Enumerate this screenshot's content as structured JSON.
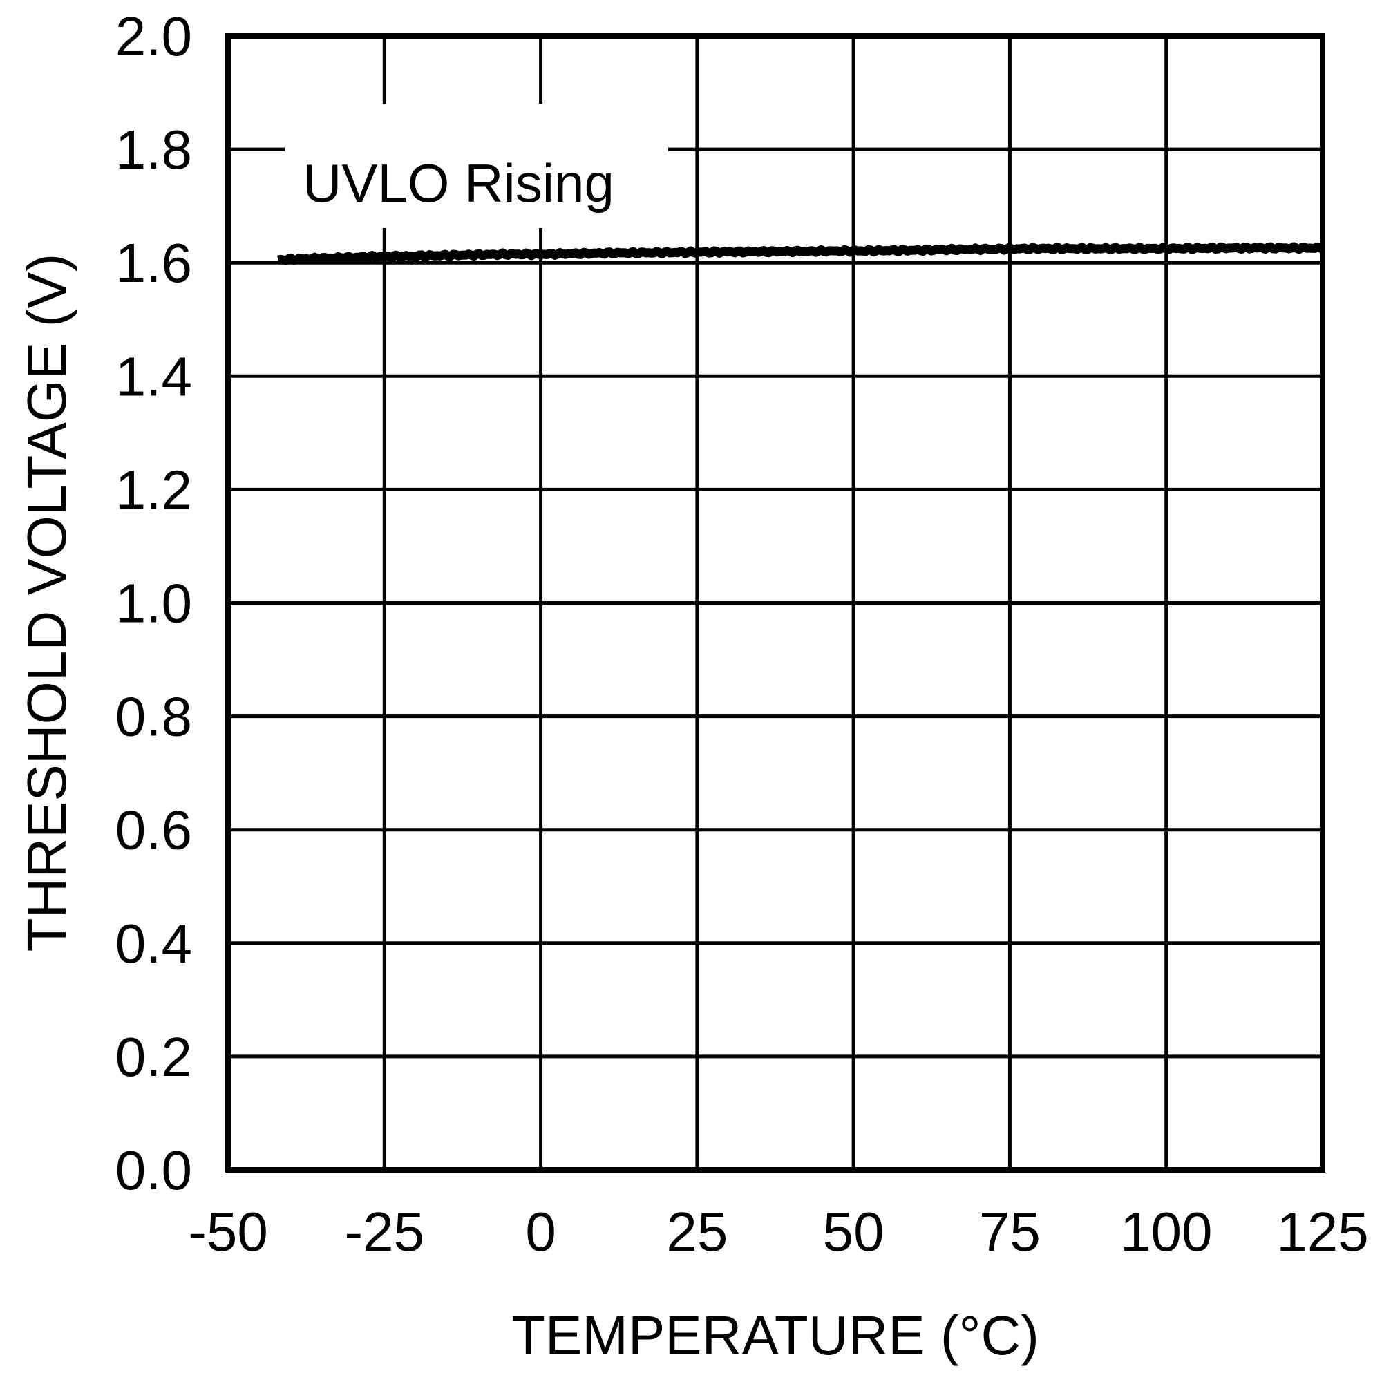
{
  "chart_data": {
    "type": "line",
    "title": "",
    "xlabel": "TEMPERATURE (°C)",
    "ylabel": "THRESHOLD VOLTAGE (V)",
    "xlim": [
      -50,
      125
    ],
    "ylim": [
      0.0,
      2.0
    ],
    "xticks": [
      "-50",
      "-25",
      "0",
      "25",
      "50",
      "75",
      "100",
      "125"
    ],
    "yticks": [
      "0.0",
      "0.2",
      "0.4",
      "0.6",
      "0.8",
      "1.0",
      "1.2",
      "1.4",
      "1.6",
      "1.8",
      "2.0"
    ],
    "grid": true,
    "legend": null,
    "annotations": [
      {
        "text": "UVLO Rising",
        "x": -37,
        "y": 1.74
      }
    ],
    "series": [
      {
        "name": "UVLO Rising",
        "color": "#000000",
        "x": [
          -42,
          -35,
          -25,
          -15,
          -5,
          0,
          10,
          20,
          30,
          40,
          50,
          60,
          70,
          80,
          90,
          100,
          110,
          125
        ],
        "y": [
          1.605,
          1.608,
          1.611,
          1.613,
          1.615,
          1.615,
          1.617,
          1.618,
          1.619,
          1.62,
          1.621,
          1.622,
          1.624,
          1.625,
          1.625,
          1.625,
          1.626,
          1.626
        ]
      }
    ]
  }
}
